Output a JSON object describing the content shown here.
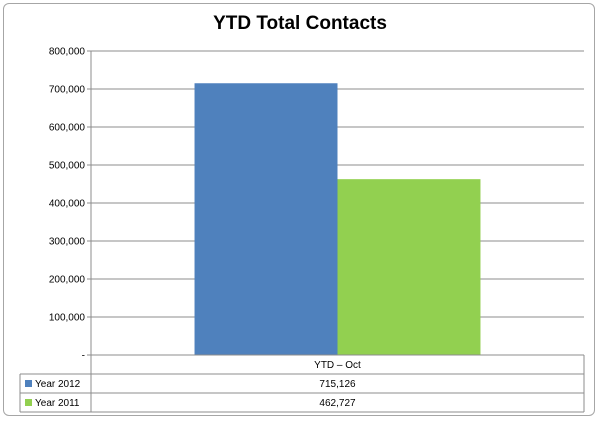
{
  "chart_data": {
    "type": "bar",
    "title": "YTD Total Contacts",
    "categories": [
      "YTD – Oct"
    ],
    "series": [
      {
        "name": "Year 2012",
        "values": [
          715126
        ],
        "label": "715,126",
        "color": "#4f81bd"
      },
      {
        "name": "Year 2011",
        "values": [
          462727
        ],
        "label": "462,727",
        "color": "#92d050"
      }
    ],
    "ylim": [
      0,
      800000
    ],
    "yticks": [
      0,
      100000,
      200000,
      300000,
      400000,
      500000,
      600000,
      700000,
      800000
    ],
    "ytick_labels": [
      "-",
      "100,000",
      "200,000",
      "300,000",
      "400,000",
      "500,000",
      "600,000",
      "700,000",
      "800,000"
    ],
    "grid": true,
    "legend": "data-table"
  }
}
